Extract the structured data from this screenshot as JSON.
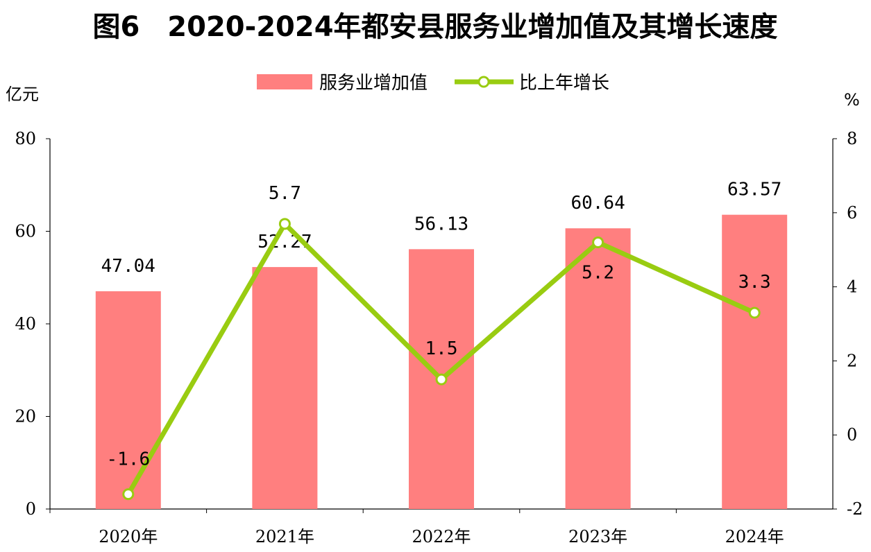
{
  "chart_data": {
    "type": "bar+line",
    "title": "图6　2020-2024年都安县服务业增加值及其增长速度",
    "categories": [
      "2020年",
      "2021年",
      "2022年",
      "2023年",
      "2024年"
    ],
    "series": [
      {
        "name": "服务业增加值",
        "type": "bar",
        "axis": "left",
        "values": [
          47.04,
          52.27,
          56.13,
          60.64,
          63.57
        ],
        "labels": [
          "47.04",
          "52.27",
          "56.13",
          "60.64",
          "63.57"
        ],
        "color": "#FF7F7F"
      },
      {
        "name": "比上年增长",
        "type": "line",
        "axis": "right",
        "values": [
          -1.6,
          5.7,
          1.5,
          5.2,
          3.3
        ],
        "labels": [
          "-1.6",
          "5.7",
          "1.5",
          "5.2",
          "3.3"
        ],
        "color": "#99CC11"
      }
    ],
    "ylabel_left": "亿元",
    "ylim_left": [
      0,
      80
    ],
    "yticks_left": [
      "0",
      "20",
      "40",
      "60",
      "80"
    ],
    "ylabel_right": "%",
    "ylim_right": [
      -2,
      8
    ],
    "yticks_right": [
      "-2",
      "0",
      "2",
      "4",
      "6",
      "8"
    ],
    "legend_position": "top-center",
    "grid": false
  }
}
